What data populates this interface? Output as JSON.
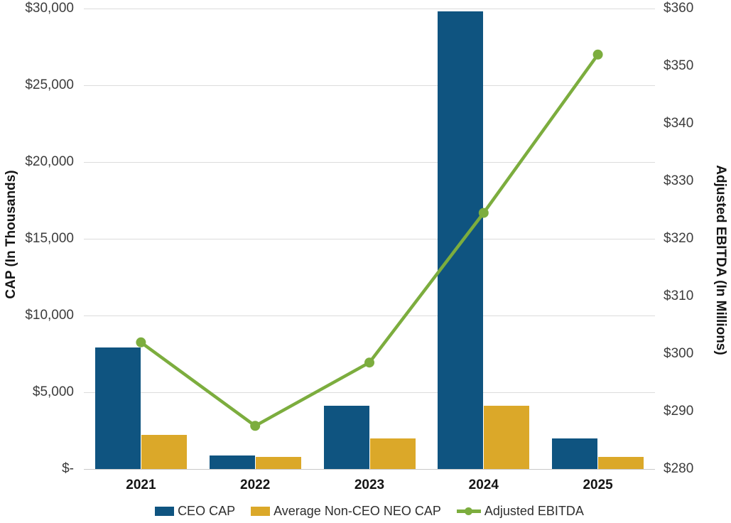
{
  "chart_data": {
    "type": "bar",
    "subtype": "combo-bar-line-dual-axis",
    "categories": [
      "2021",
      "2022",
      "2023",
      "2024",
      "2025"
    ],
    "series": [
      {
        "name": "CEO CAP",
        "type": "bar",
        "axis": "left",
        "color": "#0f5480",
        "values": [
          7900,
          900,
          4100,
          29800,
          2000
        ]
      },
      {
        "name": "Average Non-CEO NEO CAP",
        "type": "bar",
        "axis": "left",
        "color": "#dba829",
        "values": [
          2200,
          800,
          2000,
          4100,
          800
        ]
      },
      {
        "name": "Adjusted EBITDA",
        "type": "line",
        "axis": "right",
        "color": "#7cad3e",
        "values": [
          302,
          287.5,
          298.5,
          324.5,
          352
        ]
      }
    ],
    "left_axis": {
      "title": "CAP (In Thousands)",
      "min": 0,
      "max": 30000,
      "tick_step": 5000,
      "tick_labels": [
        "$-",
        "$5,000",
        "$10,000",
        "$15,000",
        "$20,000",
        "$25,000",
        "$30,000"
      ]
    },
    "right_axis": {
      "title": "Adjusted EBITDA (In Millions)",
      "min": 280,
      "max": 360,
      "tick_step": 10,
      "tick_labels": [
        "$280",
        "$290",
        "$300",
        "$310",
        "$320",
        "$330",
        "$340",
        "$350",
        "$360"
      ]
    },
    "grid": true,
    "legend_position": "bottom",
    "xlabel": "",
    "background_color": "#ffffff",
    "gridline_color": "#dcdcdc"
  }
}
